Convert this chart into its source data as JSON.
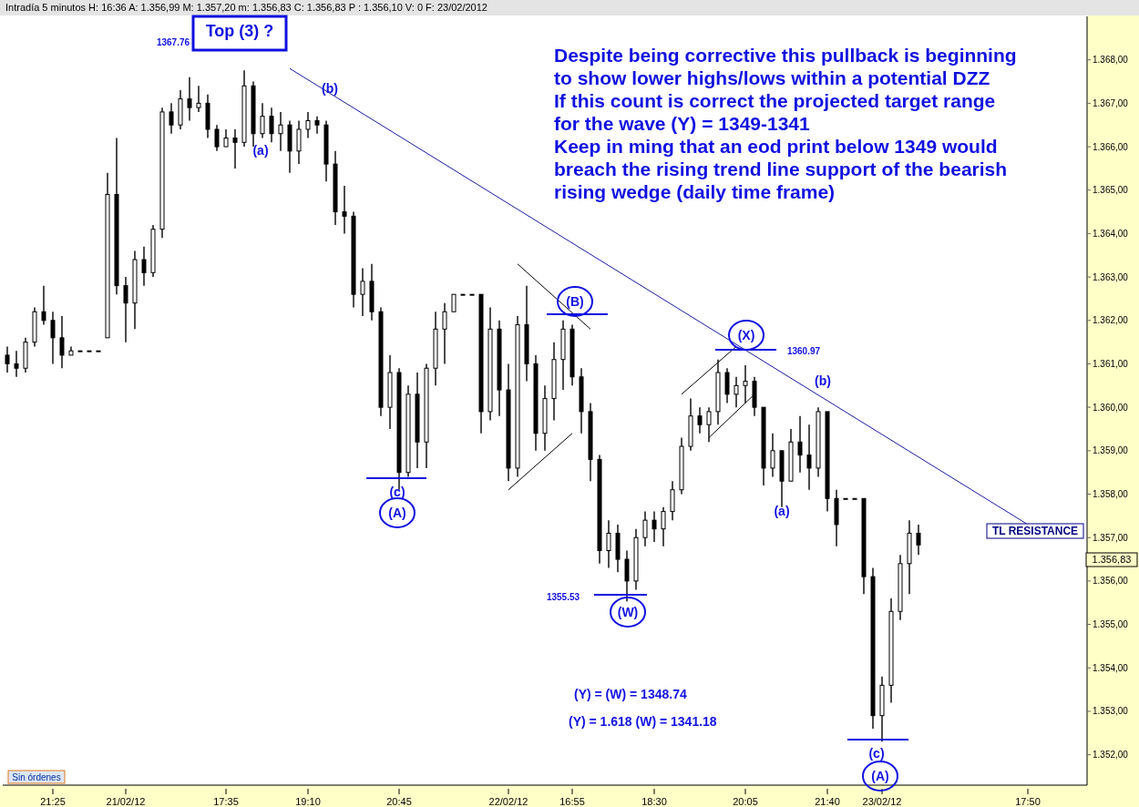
{
  "chart_data": {
    "type": "candlestick",
    "color": "#000000",
    "categories": [
      null,
      null,
      null,
      null,
      null,
      "21:25",
      null,
      null,
      null,
      null,
      null,
      null,
      null,
      "21/02/12",
      null,
      null,
      null,
      null,
      null,
      null,
      null,
      null,
      null,
      null,
      "17:35",
      null,
      null,
      null,
      null,
      null,
      null,
      null,
      null,
      "19:10",
      null,
      null,
      null,
      null,
      null,
      null,
      null,
      null,
      null,
      "20:45",
      null,
      null,
      null,
      null,
      null,
      null,
      null,
      null,
      null,
      null,
      null,
      "22/02/12",
      null,
      null,
      null,
      null,
      null,
      null,
      "16:55",
      null,
      null,
      null,
      null,
      null,
      null,
      null,
      null,
      "18:30",
      null,
      null,
      null,
      null,
      null,
      null,
      null,
      null,
      null,
      "20:05",
      null,
      null,
      null,
      null,
      null,
      null,
      null,
      null,
      "21:40",
      null,
      null,
      null,
      null,
      null,
      "23/02/12",
      null,
      null,
      null,
      null,
      null,
      null,
      null,
      null,
      null,
      null,
      null,
      null,
      null,
      null,
      null,
      "17:50",
      null,
      null,
      null,
      null,
      null,
      null
    ],
    "ohlc": [
      [
        1361.2,
        1361.4,
        1360.8,
        1361.0
      ],
      [
        1361.0,
        1361.3,
        1360.7,
        1360.9
      ],
      [
        1360.9,
        1361.6,
        1360.8,
        1361.5
      ],
      [
        1361.5,
        1362.3,
        1361.4,
        1362.2
      ],
      [
        1362.2,
        1362.8,
        1361.9,
        1362.0
      ],
      [
        1362.0,
        1362.2,
        1361.0,
        1361.6
      ],
      [
        1361.6,
        1362.1,
        1360.9,
        1361.2
      ],
      [
        1361.2,
        1361.4,
        1361.2,
        1361.3
      ],
      [
        1361.3,
        1361.3,
        1361.3,
        1361.3
      ],
      [
        1361.3,
        1361.3,
        1361.3,
        1361.3
      ],
      [
        1361.3,
        1361.3,
        1361.3,
        1361.3
      ],
      [
        1361.6,
        1365.4,
        1361.6,
        1364.9
      ],
      [
        1364.9,
        1366.2,
        1362.6,
        1362.8
      ],
      [
        1362.8,
        1363.0,
        1361.5,
        1362.4
      ],
      [
        1362.4,
        1363.6,
        1361.8,
        1363.4
      ],
      [
        1363.4,
        1363.7,
        1362.8,
        1363.1
      ],
      [
        1363.1,
        1364.2,
        1363.0,
        1364.1
      ],
      [
        1364.1,
        1366.9,
        1363.9,
        1366.8
      ],
      [
        1366.8,
        1367.0,
        1366.3,
        1366.5
      ],
      [
        1366.5,
        1367.3,
        1366.4,
        1367.1
      ],
      [
        1367.1,
        1367.6,
        1366.6,
        1366.9
      ],
      [
        1366.9,
        1367.4,
        1366.8,
        1367.0
      ],
      [
        1367.0,
        1367.2,
        1366.2,
        1366.4
      ],
      [
        1366.4,
        1366.5,
        1365.9,
        1366.0
      ],
      [
        1366.0,
        1366.4,
        1366.0,
        1366.2
      ],
      [
        1366.2,
        1366.4,
        1365.5,
        1366.1
      ],
      [
        1366.1,
        1367.76,
        1366.0,
        1367.4
      ],
      [
        1367.4,
        1367.5,
        1366.0,
        1366.3
      ],
      [
        1366.3,
        1367.0,
        1366.2,
        1366.7
      ],
      [
        1366.7,
        1366.9,
        1366.1,
        1366.3
      ],
      [
        1366.3,
        1366.8,
        1365.9,
        1366.5
      ],
      [
        1366.5,
        1366.6,
        1365.4,
        1365.9
      ],
      [
        1365.9,
        1366.6,
        1365.6,
        1366.4
      ],
      [
        1366.4,
        1366.8,
        1366.2,
        1366.6
      ],
      [
        1366.6,
        1366.7,
        1366.3,
        1366.5
      ],
      [
        1366.5,
        1366.6,
        1365.2,
        1365.6
      ],
      [
        1365.6,
        1365.9,
        1364.2,
        1364.5
      ],
      [
        1364.5,
        1365.1,
        1364.0,
        1364.4
      ],
      [
        1364.4,
        1364.5,
        1362.3,
        1362.6
      ],
      [
        1362.6,
        1363.2,
        1362.1,
        1362.9
      ],
      [
        1362.9,
        1363.3,
        1362.0,
        1362.2
      ],
      [
        1362.2,
        1362.3,
        1359.8,
        1360.0
      ],
      [
        1360.0,
        1361.2,
        1359.5,
        1360.8
      ],
      [
        1360.8,
        1360.9,
        1358.1,
        1358.5
      ],
      [
        1358.5,
        1360.5,
        1358.4,
        1360.3
      ],
      [
        1360.3,
        1360.8,
        1358.6,
        1359.2
      ],
      [
        1359.2,
        1361.0,
        1358.6,
        1360.9
      ],
      [
        1360.9,
        1362.2,
        1360.5,
        1361.8
      ],
      [
        1361.8,
        1362.4,
        1361.0,
        1362.2
      ],
      [
        1362.2,
        1362.6,
        1362.2,
        1362.6
      ],
      [
        1362.6,
        1362.6,
        1362.6,
        1362.6
      ],
      [
        1362.6,
        1362.6,
        1362.6,
        1362.6
      ],
      [
        1362.6,
        1362.6,
        1359.4,
        1359.9
      ],
      [
        1359.9,
        1362.3,
        1359.7,
        1361.8
      ],
      [
        1361.8,
        1362.0,
        1359.8,
        1360.4
      ],
      [
        1360.4,
        1361.0,
        1358.3,
        1358.6
      ],
      [
        1358.6,
        1362.1,
        1358.4,
        1361.9
      ],
      [
        1361.9,
        1362.8,
        1360.6,
        1361.0
      ],
      [
        1361.0,
        1361.2,
        1359.0,
        1359.4
      ],
      [
        1359.4,
        1360.5,
        1359.0,
        1360.2
      ],
      [
        1360.2,
        1361.5,
        1359.7,
        1361.1
      ],
      [
        1361.1,
        1362.0,
        1360.4,
        1361.8
      ],
      [
        1361.8,
        1361.9,
        1360.5,
        1360.7
      ],
      [
        1360.7,
        1360.9,
        1359.4,
        1359.9
      ],
      [
        1359.9,
        1360.1,
        1358.3,
        1358.8
      ],
      [
        1358.8,
        1358.9,
        1356.4,
        1356.7
      ],
      [
        1356.7,
        1357.4,
        1356.3,
        1357.1
      ],
      [
        1357.1,
        1357.3,
        1356.2,
        1356.5
      ],
      [
        1356.5,
        1356.7,
        1355.53,
        1356.0
      ],
      [
        1356.0,
        1357.2,
        1355.8,
        1357.0
      ],
      [
        1357.0,
        1357.6,
        1356.8,
        1357.4
      ],
      [
        1357.4,
        1357.6,
        1356.9,
        1357.2
      ],
      [
        1357.2,
        1357.7,
        1356.8,
        1357.6
      ],
      [
        1357.6,
        1358.3,
        1357.4,
        1358.1
      ],
      [
        1358.1,
        1359.3,
        1358.0,
        1359.1
      ],
      [
        1359.1,
        1360.2,
        1359.0,
        1359.8
      ],
      [
        1359.8,
        1360.0,
        1359.4,
        1359.6
      ],
      [
        1359.6,
        1360.0,
        1359.2,
        1359.9
      ],
      [
        1359.9,
        1361.1,
        1359.6,
        1360.8
      ],
      [
        1360.8,
        1360.9,
        1360.1,
        1360.3
      ],
      [
        1360.3,
        1360.7,
        1360.0,
        1360.5
      ],
      [
        1360.5,
        1360.97,
        1360.1,
        1360.6
      ],
      [
        1360.6,
        1360.7,
        1359.8,
        1360.0
      ],
      [
        1360.0,
        1360.0,
        1358.2,
        1358.6
      ],
      [
        1358.6,
        1359.4,
        1358.4,
        1359.0
      ],
      [
        1359.0,
        1359.0,
        1357.7,
        1358.3
      ],
      [
        1358.3,
        1359.5,
        1358.3,
        1359.2
      ],
      [
        1359.2,
        1359.8,
        1358.5,
        1358.9
      ],
      [
        1358.9,
        1359.6,
        1358.1,
        1358.6
      ],
      [
        1358.6,
        1360.0,
        1358.4,
        1359.9
      ],
      [
        1359.9,
        1359.9,
        1357.6,
        1357.9
      ],
      [
        1357.9,
        1358.1,
        1356.8,
        1357.3
      ],
      [
        1357.9,
        1357.9,
        1357.9,
        1357.9
      ],
      [
        1357.9,
        1357.9,
        1357.9,
        1357.9
      ],
      [
        1357.9,
        1357.9,
        1355.7,
        1356.1
      ],
      [
        1356.1,
        1356.3,
        1352.6,
        1352.9
      ],
      [
        1352.9,
        1353.8,
        1352.3,
        1353.6
      ],
      [
        1353.6,
        1355.6,
        1353.2,
        1355.3
      ],
      [
        1355.3,
        1356.6,
        1355.1,
        1356.4
      ],
      [
        1356.4,
        1357.4,
        1355.7,
        1357.1
      ],
      [
        1357.1,
        1357.3,
        1356.6,
        1356.83
      ],
      null,
      null,
      null,
      null,
      null,
      null,
      null,
      null,
      null,
      null,
      null,
      null,
      null,
      null,
      null,
      null,
      null,
      null
    ],
    "series": [
      {
        "type": "line",
        "color": "#000000",
        "values": [
          null,
          null,
          null,
          null,
          null,
          null,
          null,
          null,
          null,
          null,
          null,
          null,
          null,
          null,
          null,
          null,
          null,
          null,
          null,
          null,
          null,
          null,
          null,
          null,
          null,
          null,
          null,
          null,
          null,
          null,
          null,
          null,
          null,
          null,
          null,
          null,
          null,
          null,
          null,
          null,
          null,
          null,
          null,
          null,
          null,
          null,
          null,
          null,
          null,
          null,
          null,
          null,
          null,
          null,
          null,
          null,
          1363.3,
          null,
          null,
          null,
          null,
          null,
          null,
          null,
          1361.8,
          null,
          null,
          null,
          null,
          null,
          null,
          null,
          null,
          null,
          null,
          null,
          null,
          null,
          null,
          null,
          null,
          null,
          null,
          null,
          null,
          null,
          null,
          null,
          null,
          null,
          null,
          null,
          null,
          null,
          null,
          null,
          null,
          null,
          null,
          null,
          null,
          null,
          null,
          null,
          null,
          null,
          null,
          null,
          null,
          null,
          null,
          null,
          null,
          null,
          null,
          null,
          null,
          null,
          null
        ]
      },
      {
        "type": "line",
        "color": "#000000",
        "values": [
          null,
          null,
          null,
          null,
          null,
          null,
          null,
          null,
          null,
          null,
          null,
          null,
          null,
          null,
          null,
          null,
          null,
          null,
          null,
          null,
          null,
          null,
          null,
          null,
          null,
          null,
          null,
          null,
          null,
          null,
          null,
          null,
          null,
          null,
          null,
          null,
          null,
          null,
          null,
          null,
          null,
          null,
          null,
          null,
          null,
          null,
          null,
          null,
          null,
          null,
          null,
          null,
          null,
          null,
          null,
          1358.1,
          null,
          null,
          null,
          null,
          null,
          null,
          1359.4,
          null,
          null,
          null,
          null,
          null,
          null,
          null,
          null,
          null,
          null,
          null,
          null,
          null,
          null,
          null,
          null,
          null,
          null,
          null,
          null,
          null,
          null,
          null,
          null,
          null,
          null,
          null,
          null,
          null,
          null,
          null,
          null,
          null,
          null,
          null,
          null,
          null,
          null,
          null,
          null,
          null,
          null,
          null,
          null,
          null,
          null,
          null,
          null,
          null,
          null,
          null,
          null,
          null,
          null,
          null,
          null
        ]
      },
      {
        "type": "line",
        "color": "#000000",
        "values": [
          null,
          null,
          null,
          null,
          null,
          null,
          null,
          null,
          null,
          null,
          null,
          null,
          null,
          null,
          null,
          null,
          null,
          null,
          null,
          null,
          null,
          null,
          null,
          null,
          null,
          null,
          null,
          null,
          null,
          null,
          null,
          null,
          null,
          null,
          null,
          null,
          null,
          null,
          null,
          null,
          null,
          null,
          null,
          null,
          null,
          null,
          null,
          null,
          null,
          null,
          null,
          null,
          null,
          null,
          null,
          null,
          null,
          null,
          null,
          null,
          null,
          null,
          null,
          null,
          null,
          null,
          null,
          null,
          null,
          null,
          null,
          null,
          null,
          null,
          1360.3,
          null,
          null,
          null,
          null,
          null,
          1361.4,
          null,
          null,
          null,
          null,
          null,
          null,
          null,
          null,
          null,
          null,
          null,
          null,
          null,
          null,
          null,
          null,
          null,
          null,
          null,
          null,
          null,
          null,
          null,
          null,
          null,
          null,
          null,
          null,
          null,
          null,
          null,
          null,
          null,
          null,
          null,
          null,
          null,
          null
        ]
      },
      {
        "type": "line",
        "color": "#000000",
        "values": [
          null,
          null,
          null,
          null,
          null,
          null,
          null,
          null,
          null,
          null,
          null,
          null,
          null,
          null,
          null,
          null,
          null,
          null,
          null,
          null,
          null,
          null,
          null,
          null,
          null,
          null,
          null,
          null,
          null,
          null,
          null,
          null,
          null,
          null,
          null,
          null,
          null,
          null,
          null,
          null,
          null,
          null,
          null,
          null,
          null,
          null,
          null,
          null,
          null,
          null,
          null,
          null,
          null,
          null,
          null,
          null,
          null,
          null,
          null,
          null,
          null,
          null,
          null,
          null,
          null,
          null,
          null,
          null,
          null,
          null,
          null,
          null,
          null,
          null,
          null,
          null,
          null,
          1359.3,
          null,
          null,
          null,
          null,
          1360.3,
          null,
          null,
          null,
          null,
          null,
          null,
          null,
          null,
          null,
          null,
          null,
          null,
          null,
          null,
          null,
          null,
          null,
          null,
          null,
          null,
          null,
          null,
          null,
          null,
          null,
          null,
          null,
          null,
          null,
          null,
          null,
          null,
          null,
          null,
          null,
          null
        ]
      },
      {
        "type": "line",
        "color": "#1a1aa0",
        "values": [
          null,
          null,
          null,
          null,
          null,
          null,
          null,
          null,
          null,
          null,
          null,
          null,
          null,
          null,
          null,
          null,
          null,
          null,
          null,
          null,
          null,
          null,
          null,
          null,
          null,
          null,
          null,
          null,
          null,
          null,
          null,
          1367.8,
          null,
          null,
          null,
          null,
          null,
          null,
          null,
          null,
          null,
          null,
          null,
          null,
          null,
          null,
          null,
          null,
          null,
          null,
          null,
          null,
          null,
          null,
          null,
          null,
          null,
          null,
          null,
          null,
          null,
          null,
          null,
          null,
          null,
          null,
          null,
          null,
          null,
          null,
          null,
          null,
          null,
          null,
          null,
          null,
          null,
          null,
          null,
          null,
          null,
          null,
          null,
          null,
          null,
          null,
          null,
          null,
          null,
          null,
          null,
          null,
          null,
          null,
          null,
          null,
          null,
          null,
          null,
          null,
          null,
          null,
          null,
          null,
          null,
          null,
          null,
          null,
          null,
          null,
          null,
          null,
          1357.3,
          null,
          null,
          null,
          null,
          null,
          null
        ]
      }
    ],
    "ylim": [
      1351.3,
      1369.0
    ],
    "yticks": [
      {
        "value": 1352,
        "label": "1.352,00"
      },
      {
        "value": 1353,
        "label": "1.353,00"
      },
      {
        "value": 1354,
        "label": "1.354,00"
      },
      {
        "value": 1355,
        "label": "1.355,00"
      },
      {
        "value": 1356,
        "label": "1.356,00"
      },
      {
        "value": 1357,
        "label": "1.357,00"
      },
      {
        "value": 1358,
        "label": "1.358,00"
      },
      {
        "value": 1359,
        "label": "1.359,00"
      },
      {
        "value": 1360,
        "label": "1.360,00"
      },
      {
        "value": 1361,
        "label": "1.361,00"
      },
      {
        "value": 1362,
        "label": "1.362,00"
      },
      {
        "value": 1363,
        "label": "1.363,00"
      },
      {
        "value": 1364,
        "label": "1.364,00"
      },
      {
        "value": 1365,
        "label": "1.365,00"
      },
      {
        "value": 1366,
        "label": "1.366,00"
      },
      {
        "value": 1367,
        "label": "1.367,00"
      },
      {
        "value": 1368,
        "label": "1.368,00"
      }
    ],
    "grid": false,
    "annotations": [
      "Intradía 5 minutos H: 16:36 A: 1.356,99 M: 1.357,20 m: 1.356,83 C: 1.356,83 P : 1.356,10 V: 0 F: 23/02/2012",
      "Top (3) ?",
      "1367.76",
      "(a)",
      "(b)",
      "(c)",
      "(A)",
      "(B)",
      "1355.53",
      "(W)",
      "(X)",
      "1360.97",
      "(a)",
      "(b)",
      "(c)",
      "(A)",
      "TL RESISTANCE",
      "Despite being corrective this pullback is beginning\nto show lower highs/lows within a potential DZZ\nIf this count is correct the projected target range\nfor the wave (Y) = 1349-1341\nKeep in ming that an eod print below 1349 would\nbreach the rising trend line support of the bearish\nrising wedge (daily time frame)",
      "(Y) = (W) = 1348.74",
      "(Y) = 1.618 (W) = 1341.18",
      "Sin órdenes",
      "1.356,83"
    ]
  }
}
